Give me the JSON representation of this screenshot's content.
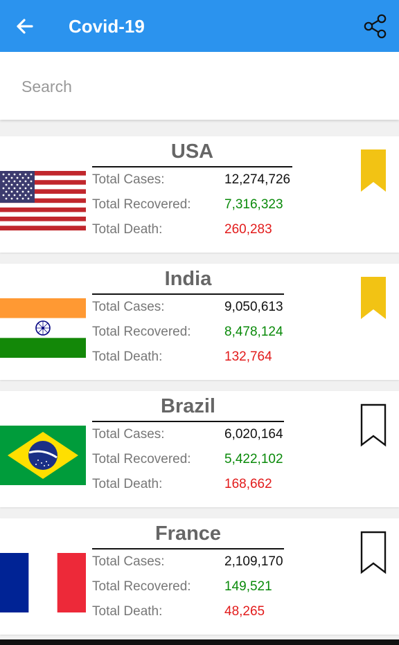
{
  "app": {
    "title": "Covid-19"
  },
  "search": {
    "placeholder": "Search",
    "value": ""
  },
  "labels": {
    "cases": "Total Cases:",
    "recovered": "Total Recovered:",
    "death": "Total Death:"
  },
  "countries": [
    {
      "name": "USA",
      "cases": "12,274,726",
      "recovered": "7,316,323",
      "death": "260,283",
      "bookmarked": true
    },
    {
      "name": "India",
      "cases": "9,050,613",
      "recovered": "8,478,124",
      "death": "132,764",
      "bookmarked": true
    },
    {
      "name": "Brazil",
      "cases": "6,020,164",
      "recovered": "5,422,102",
      "death": "168,662",
      "bookmarked": false
    },
    {
      "name": "France",
      "cases": "2,109,170",
      "recovered": "149,521",
      "death": "48,265",
      "bookmarked": false
    }
  ],
  "colors": {
    "appbar": "#2b93ee",
    "bookmark_filled": "#f2c314",
    "recovered": "#0a8a0a",
    "death": "#e21b1b"
  },
  "icons": {
    "back": "arrow-left-icon",
    "share": "share-icon",
    "bookmark": "bookmark-icon"
  }
}
